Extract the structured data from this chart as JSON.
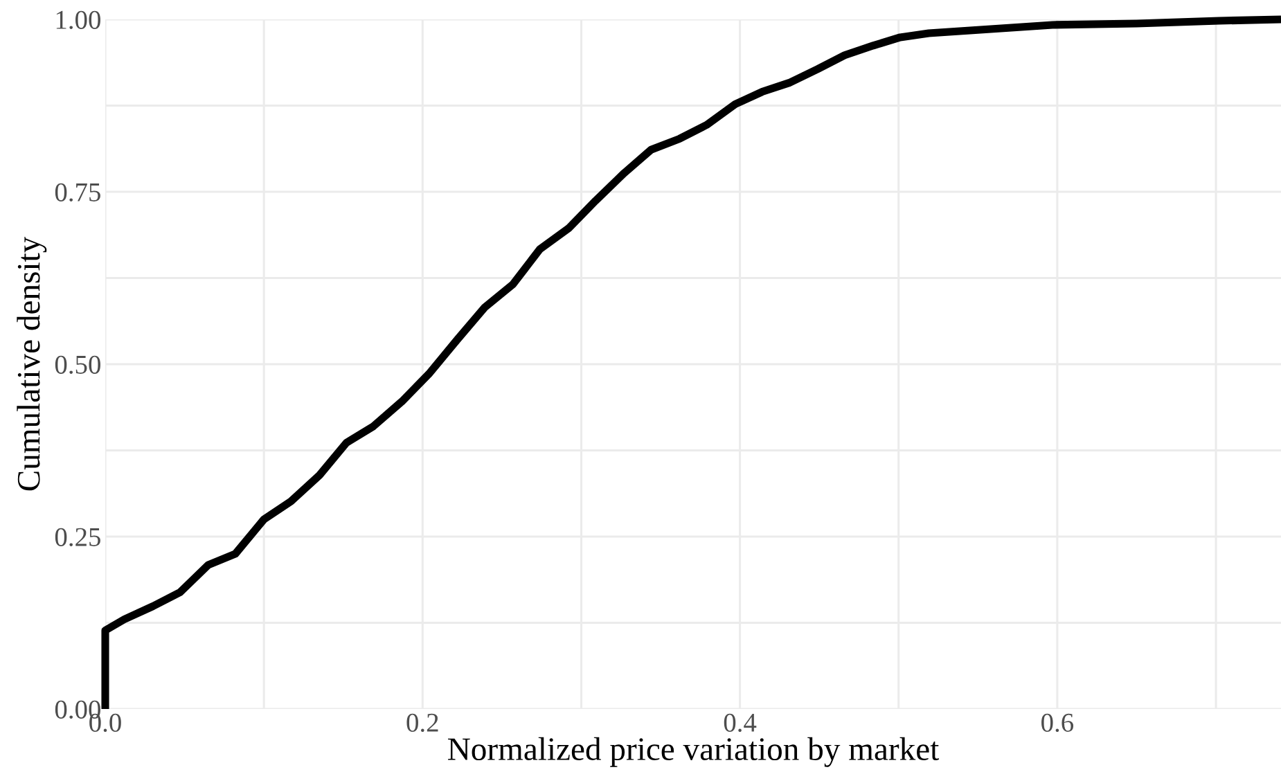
{
  "chart_data": {
    "type": "line",
    "xlabel": "Normalized price variation by market",
    "ylabel": "Cumulative density",
    "xlim": [
      0,
      0.741
    ],
    "ylim": [
      0,
      1
    ],
    "xticks": [
      {
        "value": 0.0,
        "label": "0.0"
      },
      {
        "value": 0.1,
        "label": null
      },
      {
        "value": 0.2,
        "label": "0.2"
      },
      {
        "value": 0.3,
        "label": null
      },
      {
        "value": 0.4,
        "label": "0.4"
      },
      {
        "value": 0.5,
        "label": null
      },
      {
        "value": 0.6,
        "label": "0.6"
      },
      {
        "value": 0.7,
        "label": null
      }
    ],
    "yticks": [
      {
        "value": 0.0,
        "label": "0.00"
      },
      {
        "value": 0.125,
        "label": null
      },
      {
        "value": 0.25,
        "label": "0.25"
      },
      {
        "value": 0.375,
        "label": null
      },
      {
        "value": 0.5,
        "label": "0.50"
      },
      {
        "value": 0.625,
        "label": null
      },
      {
        "value": 0.75,
        "label": "0.75"
      },
      {
        "value": 0.875,
        "label": null
      },
      {
        "value": 1.0,
        "label": "1.00"
      }
    ],
    "grid": true,
    "marker": "none",
    "line_style": "solid",
    "x": [
      0,
      0,
      0.012,
      0.03,
      0.047,
      0.065,
      0.082,
      0.1,
      0.117,
      0.135,
      0.152,
      0.169,
      0.187,
      0.204,
      0.222,
      0.239,
      0.257,
      0.274,
      0.292,
      0.309,
      0.327,
      0.344,
      0.362,
      0.379,
      0.397,
      0.414,
      0.431,
      0.449,
      0.466,
      0.484,
      0.501,
      0.519,
      0.545,
      0.571,
      0.597,
      0.65,
      0.702,
      0.741
    ],
    "series": [
      {
        "color": "#000000",
        "values": [
          0,
          0.114,
          0.13,
          0.149,
          0.169,
          0.209,
          0.225,
          0.275,
          0.301,
          0.339,
          0.386,
          0.41,
          0.446,
          0.486,
          0.536,
          0.582,
          0.616,
          0.667,
          0.697,
          0.737,
          0.777,
          0.811,
          0.827,
          0.847,
          0.877,
          0.895,
          0.908,
          0.928,
          0.948,
          0.962,
          0.974,
          0.98,
          0.984,
          0.988,
          0.992,
          0.994,
          0.998,
          1.0
        ]
      }
    ]
  }
}
